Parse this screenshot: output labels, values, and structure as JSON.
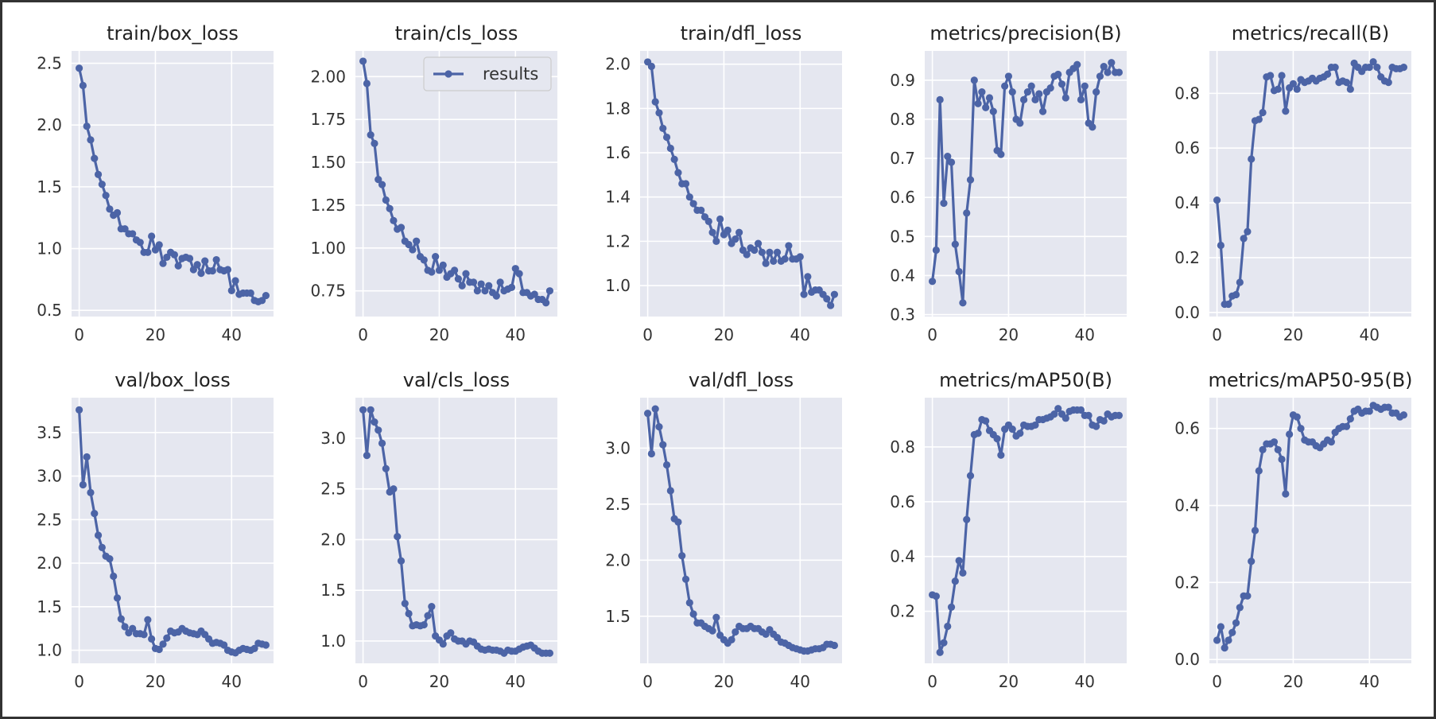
{
  "colors": {
    "panel_bg": "#e5e7f0",
    "grid": "#ffffff",
    "line": "#4c64a6",
    "text": "#222222"
  },
  "chart_data": [
    {
      "type": "line",
      "title": "train/box_loss",
      "xlim": [
        -2,
        51
      ],
      "ylim": [
        0.45,
        2.6
      ],
      "xticks": [
        0,
        20,
        40
      ],
      "yticks": [
        0.5,
        1.0,
        1.5,
        2.0,
        2.5
      ],
      "ytick_labels": [
        "0.5",
        "1.0",
        "1.5",
        "2.0",
        "2.5"
      ],
      "series": [
        {
          "name": "results",
          "values": [
            2.46,
            2.32,
            1.99,
            1.88,
            1.73,
            1.6,
            1.52,
            1.43,
            1.32,
            1.27,
            1.29,
            1.16,
            1.16,
            1.12,
            1.12,
            1.07,
            1.05,
            0.97,
            0.97,
            1.1,
            0.99,
            1.03,
            0.88,
            0.93,
            0.97,
            0.95,
            0.86,
            0.92,
            0.93,
            0.92,
            0.83,
            0.87,
            0.8,
            0.9,
            0.82,
            0.82,
            0.91,
            0.83,
            0.82,
            0.83,
            0.66,
            0.74,
            0.63,
            0.64,
            0.64,
            0.64,
            0.58,
            0.57,
            0.58,
            0.62
          ]
        }
      ]
    },
    {
      "type": "line",
      "title": "train/cls_loss",
      "xlim": [
        -2,
        51
      ],
      "ylim": [
        0.6,
        2.15
      ],
      "xticks": [
        0,
        20,
        40
      ],
      "yticks": [
        0.75,
        1.0,
        1.25,
        1.5,
        1.75,
        2.0
      ],
      "ytick_labels": [
        "0.75",
        "1.00",
        "1.25",
        "1.50",
        "1.75",
        "2.00"
      ],
      "legend": {
        "position": "top-right",
        "label": "results"
      },
      "series": [
        {
          "name": "results",
          "values": [
            2.09,
            1.96,
            1.66,
            1.61,
            1.4,
            1.37,
            1.28,
            1.23,
            1.16,
            1.11,
            1.12,
            1.04,
            1.02,
            0.99,
            1.04,
            0.95,
            0.93,
            0.87,
            0.86,
            0.95,
            0.87,
            0.9,
            0.83,
            0.85,
            0.87,
            0.82,
            0.78,
            0.85,
            0.8,
            0.8,
            0.75,
            0.79,
            0.75,
            0.78,
            0.74,
            0.72,
            0.8,
            0.75,
            0.76,
            0.77,
            0.88,
            0.85,
            0.74,
            0.74,
            0.72,
            0.73,
            0.7,
            0.7,
            0.68,
            0.75
          ]
        }
      ]
    },
    {
      "type": "line",
      "title": "train/dfl_loss",
      "xlim": [
        -2,
        51
      ],
      "ylim": [
        0.86,
        2.06
      ],
      "xticks": [
        0,
        20,
        40
      ],
      "yticks": [
        1.0,
        1.2,
        1.4,
        1.6,
        1.8,
        2.0
      ],
      "ytick_labels": [
        "1.0",
        "1.2",
        "1.4",
        "1.6",
        "1.8",
        "2.0"
      ],
      "series": [
        {
          "name": "results",
          "values": [
            2.01,
            1.99,
            1.83,
            1.78,
            1.71,
            1.67,
            1.62,
            1.57,
            1.51,
            1.46,
            1.46,
            1.4,
            1.37,
            1.34,
            1.34,
            1.31,
            1.29,
            1.24,
            1.2,
            1.3,
            1.23,
            1.25,
            1.19,
            1.21,
            1.24,
            1.16,
            1.14,
            1.17,
            1.16,
            1.19,
            1.15,
            1.1,
            1.15,
            1.11,
            1.15,
            1.11,
            1.12,
            1.18,
            1.12,
            1.12,
            1.13,
            0.96,
            1.04,
            0.97,
            0.98,
            0.98,
            0.96,
            0.94,
            0.91,
            0.96
          ]
        }
      ]
    },
    {
      "type": "line",
      "title": "metrics/precision(B)",
      "xlim": [
        -2,
        51
      ],
      "ylim": [
        0.295,
        0.975
      ],
      "xticks": [
        0,
        20,
        40
      ],
      "yticks": [
        0.3,
        0.4,
        0.5,
        0.6,
        0.7,
        0.8,
        0.9
      ],
      "ytick_labels": [
        "0.3",
        "0.4",
        "0.5",
        "0.6",
        "0.7",
        "0.8",
        "0.9"
      ],
      "series": [
        {
          "name": "results",
          "values": [
            0.385,
            0.465,
            0.85,
            0.585,
            0.705,
            0.69,
            0.48,
            0.41,
            0.33,
            0.56,
            0.645,
            0.9,
            0.84,
            0.87,
            0.83,
            0.855,
            0.82,
            0.72,
            0.71,
            0.885,
            0.91,
            0.87,
            0.8,
            0.79,
            0.85,
            0.87,
            0.885,
            0.85,
            0.865,
            0.82,
            0.87,
            0.88,
            0.91,
            0.915,
            0.89,
            0.855,
            0.92,
            0.93,
            0.94,
            0.85,
            0.885,
            0.79,
            0.78,
            0.87,
            0.91,
            0.935,
            0.92,
            0.945,
            0.92,
            0.92
          ]
        }
      ]
    },
    {
      "type": "line",
      "title": "metrics/recall(B)",
      "xlim": [
        -2,
        51
      ],
      "ylim": [
        -0.015,
        0.955
      ],
      "xticks": [
        0,
        20,
        40
      ],
      "yticks": [
        0.0,
        0.2,
        0.4,
        0.6,
        0.8
      ],
      "ytick_labels": [
        "0.0",
        "0.2",
        "0.4",
        "0.6",
        "0.8"
      ],
      "series": [
        {
          "name": "results",
          "values": [
            0.41,
            0.245,
            0.03,
            0.03,
            0.06,
            0.065,
            0.11,
            0.27,
            0.295,
            0.56,
            0.7,
            0.705,
            0.73,
            0.86,
            0.865,
            0.81,
            0.815,
            0.865,
            0.735,
            0.82,
            0.835,
            0.815,
            0.85,
            0.84,
            0.845,
            0.855,
            0.845,
            0.855,
            0.86,
            0.87,
            0.895,
            0.895,
            0.84,
            0.845,
            0.84,
            0.815,
            0.91,
            0.895,
            0.88,
            0.895,
            0.895,
            0.915,
            0.895,
            0.86,
            0.845,
            0.84,
            0.895,
            0.89,
            0.89,
            0.895
          ]
        }
      ]
    },
    {
      "type": "line",
      "title": "val/box_loss",
      "xlim": [
        -2,
        51
      ],
      "ylim": [
        0.85,
        3.9
      ],
      "xticks": [
        0,
        20,
        40
      ],
      "yticks": [
        1.0,
        1.5,
        2.0,
        2.5,
        3.0,
        3.5
      ],
      "ytick_labels": [
        "1.0",
        "1.5",
        "2.0",
        "2.5",
        "3.0",
        "3.5"
      ],
      "series": [
        {
          "name": "results",
          "values": [
            3.76,
            2.9,
            3.22,
            2.81,
            2.57,
            2.32,
            2.18,
            2.08,
            2.05,
            1.85,
            1.6,
            1.36,
            1.27,
            1.2,
            1.25,
            1.19,
            1.19,
            1.18,
            1.35,
            1.13,
            1.02,
            1.01,
            1.07,
            1.14,
            1.22,
            1.2,
            1.21,
            1.25,
            1.22,
            1.2,
            1.19,
            1.18,
            1.22,
            1.18,
            1.13,
            1.08,
            1.09,
            1.08,
            1.06,
            1.0,
            0.98,
            0.97,
            1.0,
            1.02,
            1.01,
            1.0,
            1.02,
            1.08,
            1.07,
            1.06
          ]
        }
      ]
    },
    {
      "type": "line",
      "title": "val/cls_loss",
      "xlim": [
        -2,
        51
      ],
      "ylim": [
        0.78,
        3.4
      ],
      "xticks": [
        0,
        20,
        40
      ],
      "yticks": [
        1.0,
        1.5,
        2.0,
        2.5,
        3.0
      ],
      "ytick_labels": [
        "1.0",
        "1.5",
        "2.0",
        "2.5",
        "3.0"
      ],
      "series": [
        {
          "name": "results",
          "values": [
            3.28,
            2.83,
            3.28,
            3.16,
            3.08,
            2.95,
            2.7,
            2.47,
            2.5,
            2.03,
            1.79,
            1.37,
            1.27,
            1.15,
            1.16,
            1.15,
            1.16,
            1.25,
            1.34,
            1.05,
            1.01,
            0.97,
            1.05,
            1.08,
            1.02,
            1.0,
            1.0,
            0.97,
            1.0,
            0.99,
            0.95,
            0.92,
            0.91,
            0.92,
            0.91,
            0.91,
            0.9,
            0.88,
            0.91,
            0.9,
            0.9,
            0.92,
            0.94,
            0.95,
            0.96,
            0.93,
            0.9,
            0.88,
            0.88,
            0.88
          ]
        }
      ]
    },
    {
      "type": "line",
      "title": "val/dfl_loss",
      "xlim": [
        -2,
        51
      ],
      "ylim": [
        1.08,
        3.45
      ],
      "xticks": [
        0,
        20,
        40
      ],
      "yticks": [
        1.5,
        2.0,
        2.5,
        3.0
      ],
      "ytick_labels": [
        "1.5",
        "2.0",
        "2.5",
        "3.0"
      ],
      "series": [
        {
          "name": "results",
          "values": [
            3.31,
            2.95,
            3.35,
            3.19,
            3.03,
            2.85,
            2.62,
            2.37,
            2.34,
            2.04,
            1.83,
            1.62,
            1.52,
            1.44,
            1.44,
            1.41,
            1.39,
            1.37,
            1.49,
            1.33,
            1.29,
            1.26,
            1.29,
            1.36,
            1.41,
            1.39,
            1.39,
            1.41,
            1.39,
            1.39,
            1.36,
            1.34,
            1.38,
            1.34,
            1.31,
            1.27,
            1.26,
            1.24,
            1.22,
            1.21,
            1.2,
            1.19,
            1.19,
            1.2,
            1.21,
            1.21,
            1.22,
            1.25,
            1.25,
            1.24
          ]
        }
      ]
    },
    {
      "type": "line",
      "title": "metrics/mAP50(B)",
      "xlim": [
        -2,
        51
      ],
      "ylim": [
        0.01,
        0.98
      ],
      "xticks": [
        0,
        20,
        40
      ],
      "yticks": [
        0.2,
        0.4,
        0.6,
        0.8
      ],
      "ytick_labels": [
        "0.2",
        "0.4",
        "0.6",
        "0.8"
      ],
      "series": [
        {
          "name": "results",
          "values": [
            0.26,
            0.255,
            0.05,
            0.085,
            0.145,
            0.215,
            0.31,
            0.385,
            0.34,
            0.535,
            0.695,
            0.845,
            0.85,
            0.9,
            0.895,
            0.86,
            0.845,
            0.83,
            0.77,
            0.865,
            0.88,
            0.865,
            0.84,
            0.85,
            0.88,
            0.875,
            0.875,
            0.88,
            0.9,
            0.9,
            0.905,
            0.91,
            0.92,
            0.94,
            0.92,
            0.905,
            0.93,
            0.935,
            0.935,
            0.935,
            0.915,
            0.915,
            0.88,
            0.875,
            0.9,
            0.895,
            0.92,
            0.91,
            0.915,
            0.915
          ]
        }
      ]
    },
    {
      "type": "line",
      "title": "metrics/mAP50-95(B)",
      "xlim": [
        -2,
        51
      ],
      "ylim": [
        -0.01,
        0.68
      ],
      "xticks": [
        0,
        20,
        40
      ],
      "yticks": [
        0.0,
        0.2,
        0.4,
        0.6
      ],
      "ytick_labels": [
        "0.0",
        "0.2",
        "0.4",
        "0.6"
      ],
      "series": [
        {
          "name": "results",
          "values": [
            0.05,
            0.085,
            0.03,
            0.05,
            0.07,
            0.095,
            0.135,
            0.165,
            0.165,
            0.255,
            0.335,
            0.49,
            0.545,
            0.56,
            0.56,
            0.565,
            0.545,
            0.52,
            0.43,
            0.585,
            0.635,
            0.63,
            0.6,
            0.57,
            0.565,
            0.565,
            0.555,
            0.55,
            0.56,
            0.57,
            0.565,
            0.59,
            0.6,
            0.605,
            0.605,
            0.625,
            0.645,
            0.65,
            0.64,
            0.645,
            0.645,
            0.66,
            0.655,
            0.65,
            0.655,
            0.655,
            0.64,
            0.64,
            0.63,
            0.635
          ]
        }
      ]
    }
  ]
}
